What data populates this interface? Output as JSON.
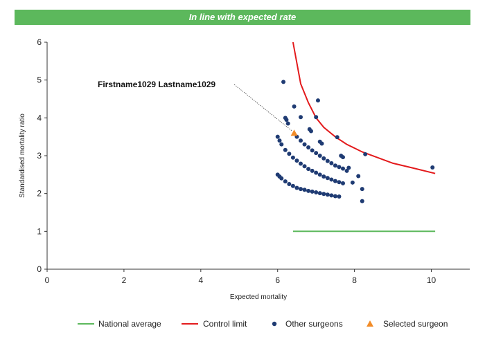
{
  "banner": {
    "title": "In line with expected rate"
  },
  "colors": {
    "banner": "#5cb85c",
    "national": "#5cb85c",
    "control": "#e31a1c",
    "others": "#1f3b73",
    "selected": "#f28c28"
  },
  "chart_data": {
    "type": "scatter",
    "xlabel": "Expected mortality",
    "ylabel": "Standardised mortality ratio",
    "xlim": [
      0,
      11
    ],
    "ylim": [
      0,
      6
    ],
    "xticks": [
      0,
      2,
      4,
      6,
      8,
      10
    ],
    "yticks": [
      0,
      1,
      2,
      3,
      4,
      5,
      6
    ],
    "grid": false,
    "legend_position": "bottom",
    "annotation": {
      "text": "Firstname1029 Lastname1029",
      "x": 6.43,
      "y": 3.6
    },
    "series": [
      {
        "name": "National average",
        "kind": "line",
        "x": [
          6.4,
          10.1
        ],
        "y": [
          1.0,
          1.0
        ]
      },
      {
        "name": "Control limit",
        "kind": "line",
        "x": [
          6.4,
          6.6,
          6.8,
          7.0,
          7.2,
          7.5,
          7.8,
          8.2,
          8.6,
          9.0,
          9.5,
          10.1
        ],
        "y": [
          6.0,
          4.9,
          4.4,
          4.0,
          3.75,
          3.5,
          3.3,
          3.1,
          2.95,
          2.8,
          2.68,
          2.53
        ]
      },
      {
        "name": "Other surgeons",
        "kind": "scatter",
        "x": [
          6.0,
          6.05,
          6.1,
          6.2,
          6.3,
          6.4,
          6.5,
          6.6,
          6.7,
          6.8,
          6.9,
          7.0,
          7.1,
          7.2,
          7.3,
          7.4,
          7.5,
          7.6,
          6.0,
          6.05,
          6.1,
          6.2,
          6.3,
          6.4,
          6.5,
          6.6,
          6.7,
          6.8,
          6.9,
          7.0,
          7.1,
          7.2,
          7.3,
          7.4,
          7.5,
          7.6,
          7.7,
          6.5,
          6.6,
          6.7,
          6.8,
          6.9,
          7.0,
          7.1,
          7.2,
          7.3,
          7.4,
          7.5,
          7.6,
          7.7,
          7.8,
          6.15,
          6.43,
          6.2,
          6.23,
          6.27,
          6.6,
          6.83,
          6.87,
          7.0,
          7.05,
          7.1,
          7.15,
          7.55,
          7.65,
          7.7,
          7.85,
          7.95,
          8.1,
          8.2,
          8.2,
          8.28,
          10.03
        ],
        "y": [
          2.5,
          2.45,
          2.4,
          2.32,
          2.25,
          2.2,
          2.15,
          2.12,
          2.1,
          2.07,
          2.05,
          2.03,
          2.01,
          1.99,
          1.97,
          1.95,
          1.93,
          1.92,
          3.5,
          3.4,
          3.3,
          3.15,
          3.05,
          2.95,
          2.87,
          2.79,
          2.72,
          2.65,
          2.6,
          2.55,
          2.5,
          2.45,
          2.41,
          2.37,
          2.33,
          2.3,
          2.27,
          3.5,
          3.4,
          3.3,
          3.22,
          3.14,
          3.07,
          3.0,
          2.93,
          2.86,
          2.8,
          2.74,
          2.7,
          2.66,
          2.6,
          4.95,
          4.3,
          4.0,
          3.95,
          3.85,
          4.02,
          3.7,
          3.65,
          4.02,
          4.46,
          3.37,
          3.32,
          3.49,
          3.0,
          2.96,
          2.68,
          2.29,
          2.46,
          1.8,
          2.12,
          3.04,
          2.69
        ]
      },
      {
        "name": "Selected surgeon",
        "kind": "scatter",
        "x": [
          6.43
        ],
        "y": [
          3.6
        ]
      }
    ]
  }
}
